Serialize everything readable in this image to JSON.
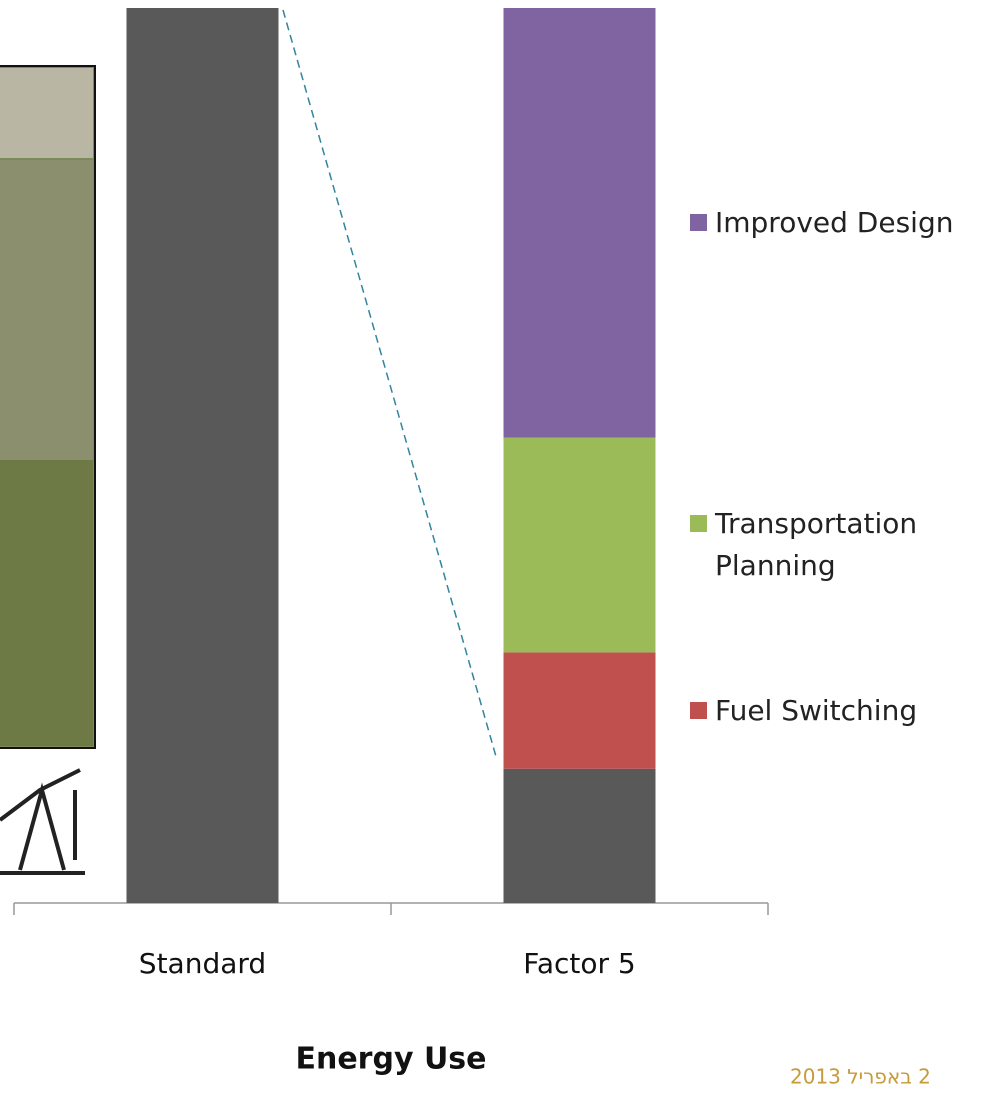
{
  "chart_data": {
    "type": "stacked-bar",
    "xlabel": "Energy Use",
    "categories": [
      "Standard",
      "Factor 5"
    ],
    "series": [
      {
        "color": "#595959",
        "values": [
          100,
          15
        ]
      },
      {
        "name": "Fuel Switching",
        "color": "#c0504d",
        "values": [
          null,
          13
        ]
      },
      {
        "name": "Transportation Planning",
        "color": "#9bbb59",
        "values": [
          null,
          24
        ]
      },
      {
        "name": "Improved Design",
        "color": "#8064a2",
        "values": [
          null,
          48
        ]
      }
    ],
    "ylim": [
      0,
      100
    ]
  },
  "footer": {
    "date": "2 באפריל 2013"
  }
}
